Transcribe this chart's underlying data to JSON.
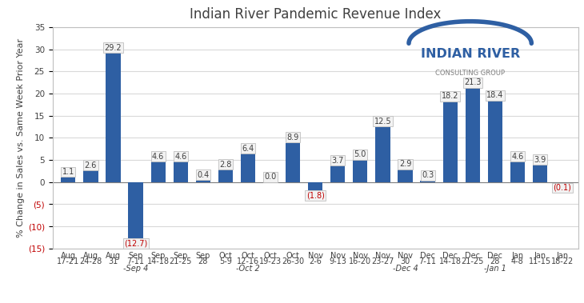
{
  "title": "Indian River Pandemic Revenue Index",
  "ylabel": "% Change in Sales vs. Same Week Prior Year",
  "categories": [
    [
      "Aug",
      "17-21"
    ],
    [
      "Aug",
      "24-28"
    ],
    [
      "Aug",
      "31"
    ],
    [
      "Sep",
      "7-11"
    ],
    [
      "Sep",
      "14-18"
    ],
    [
      "Sep",
      "21-25"
    ],
    [
      "Sep",
      "28"
    ],
    [
      "Oct",
      "5-9"
    ],
    [
      "Oct",
      "12-16"
    ],
    [
      "Oct",
      "19-23"
    ],
    [
      "Oct",
      "26-30"
    ],
    [
      "Nov",
      "2-6"
    ],
    [
      "Nov",
      "9-13"
    ],
    [
      "Nov",
      "16-20"
    ],
    [
      "Nov",
      "23-27"
    ],
    [
      "Nov",
      "30"
    ],
    [
      "Dec",
      "7-11"
    ],
    [
      "Dec",
      "14-18"
    ],
    [
      "Dec",
      "21-25"
    ],
    [
      "Dec",
      "28"
    ],
    [
      "Jan",
      "4-8"
    ],
    [
      "Jan",
      "11-15"
    ],
    [
      "Jan",
      "18-22"
    ]
  ],
  "values": [
    1.1,
    2.6,
    29.2,
    -12.7,
    4.6,
    4.6,
    0.4,
    2.8,
    6.4,
    0.0,
    8.9,
    -1.8,
    3.7,
    5.0,
    12.5,
    2.9,
    0.3,
    18.2,
    21.3,
    18.4,
    4.6,
    3.9,
    -0.1
  ],
  "bar_color": "#2E5FA3",
  "negative_label_color": "#C00000",
  "positive_label_color": "#404040",
  "label_box_color": "#F2F2F2",
  "label_box_edge_color": "#BFBFBF",
  "ylim": [
    -15,
    35
  ],
  "yticks": [
    -15,
    -10,
    -5,
    0,
    5,
    10,
    15,
    20,
    25,
    30,
    35
  ],
  "background_color": "#FFFFFF",
  "grid_color": "#D9D9D9",
  "title_fontsize": 12,
  "axis_label_fontsize": 8,
  "tick_fontsize": 7.5,
  "bar_label_fontsize": 7,
  "group_labels": [
    [
      3,
      "-Sep 4"
    ],
    [
      8,
      "-Oct 2"
    ],
    [
      15,
      "-Dec 4"
    ],
    [
      19,
      "-Jan 1"
    ]
  ]
}
